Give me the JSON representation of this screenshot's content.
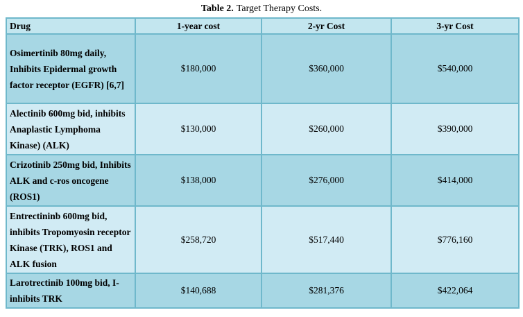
{
  "caption": {
    "label": "Table 2.",
    "text": "Target Therapy Costs."
  },
  "table": {
    "columns": [
      "Drug",
      "1-year cost",
      "2-yr Cost",
      "3-yr Cost"
    ],
    "rows": [
      {
        "drug": "Osimertinib 80mg daily, Inhibits Epidermal growth factor receptor (EGFR) [6,7]",
        "cost_1yr": "$180,000",
        "cost_2yr": "$360,000",
        "cost_3yr": "$540,000"
      },
      {
        "drug": "Alectinib 600mg bid, inhibits Anaplastic Lymphoma Kinase) (ALK)",
        "cost_1yr": "$130,000",
        "cost_2yr": "$260,000",
        "cost_3yr": "$390,000"
      },
      {
        "drug": "Crizotinib 250mg bid, Inhibits ALK and c-ros oncogene (ROS1)",
        "cost_1yr": "$138,000",
        "cost_2yr": "$276,000",
        "cost_3yr": "$414,000"
      },
      {
        "drug": "Entrectininb 600mg bid, inhibits Tropomyosin receptor Kinase (TRK), ROS1 and ALK fusion",
        "cost_1yr": "$258,720",
        "cost_2yr": "$517,440",
        "cost_3yr": "$776,160"
      },
      {
        "drug": "Larotrectinib 100mg bid, I-inhibits TRK",
        "cost_1yr": "$140,688",
        "cost_2yr": "$281,376",
        "cost_3yr": "$422,064"
      }
    ]
  },
  "colors": {
    "page-bg": "#ffffff",
    "header-bg": "#c3e6ef",
    "row-dark-bg": "#a7d7e4",
    "row-light-bg": "#d1ebf4",
    "border": "#6fb8cb",
    "outer-border": "#5aabc2",
    "text": "#000000"
  }
}
